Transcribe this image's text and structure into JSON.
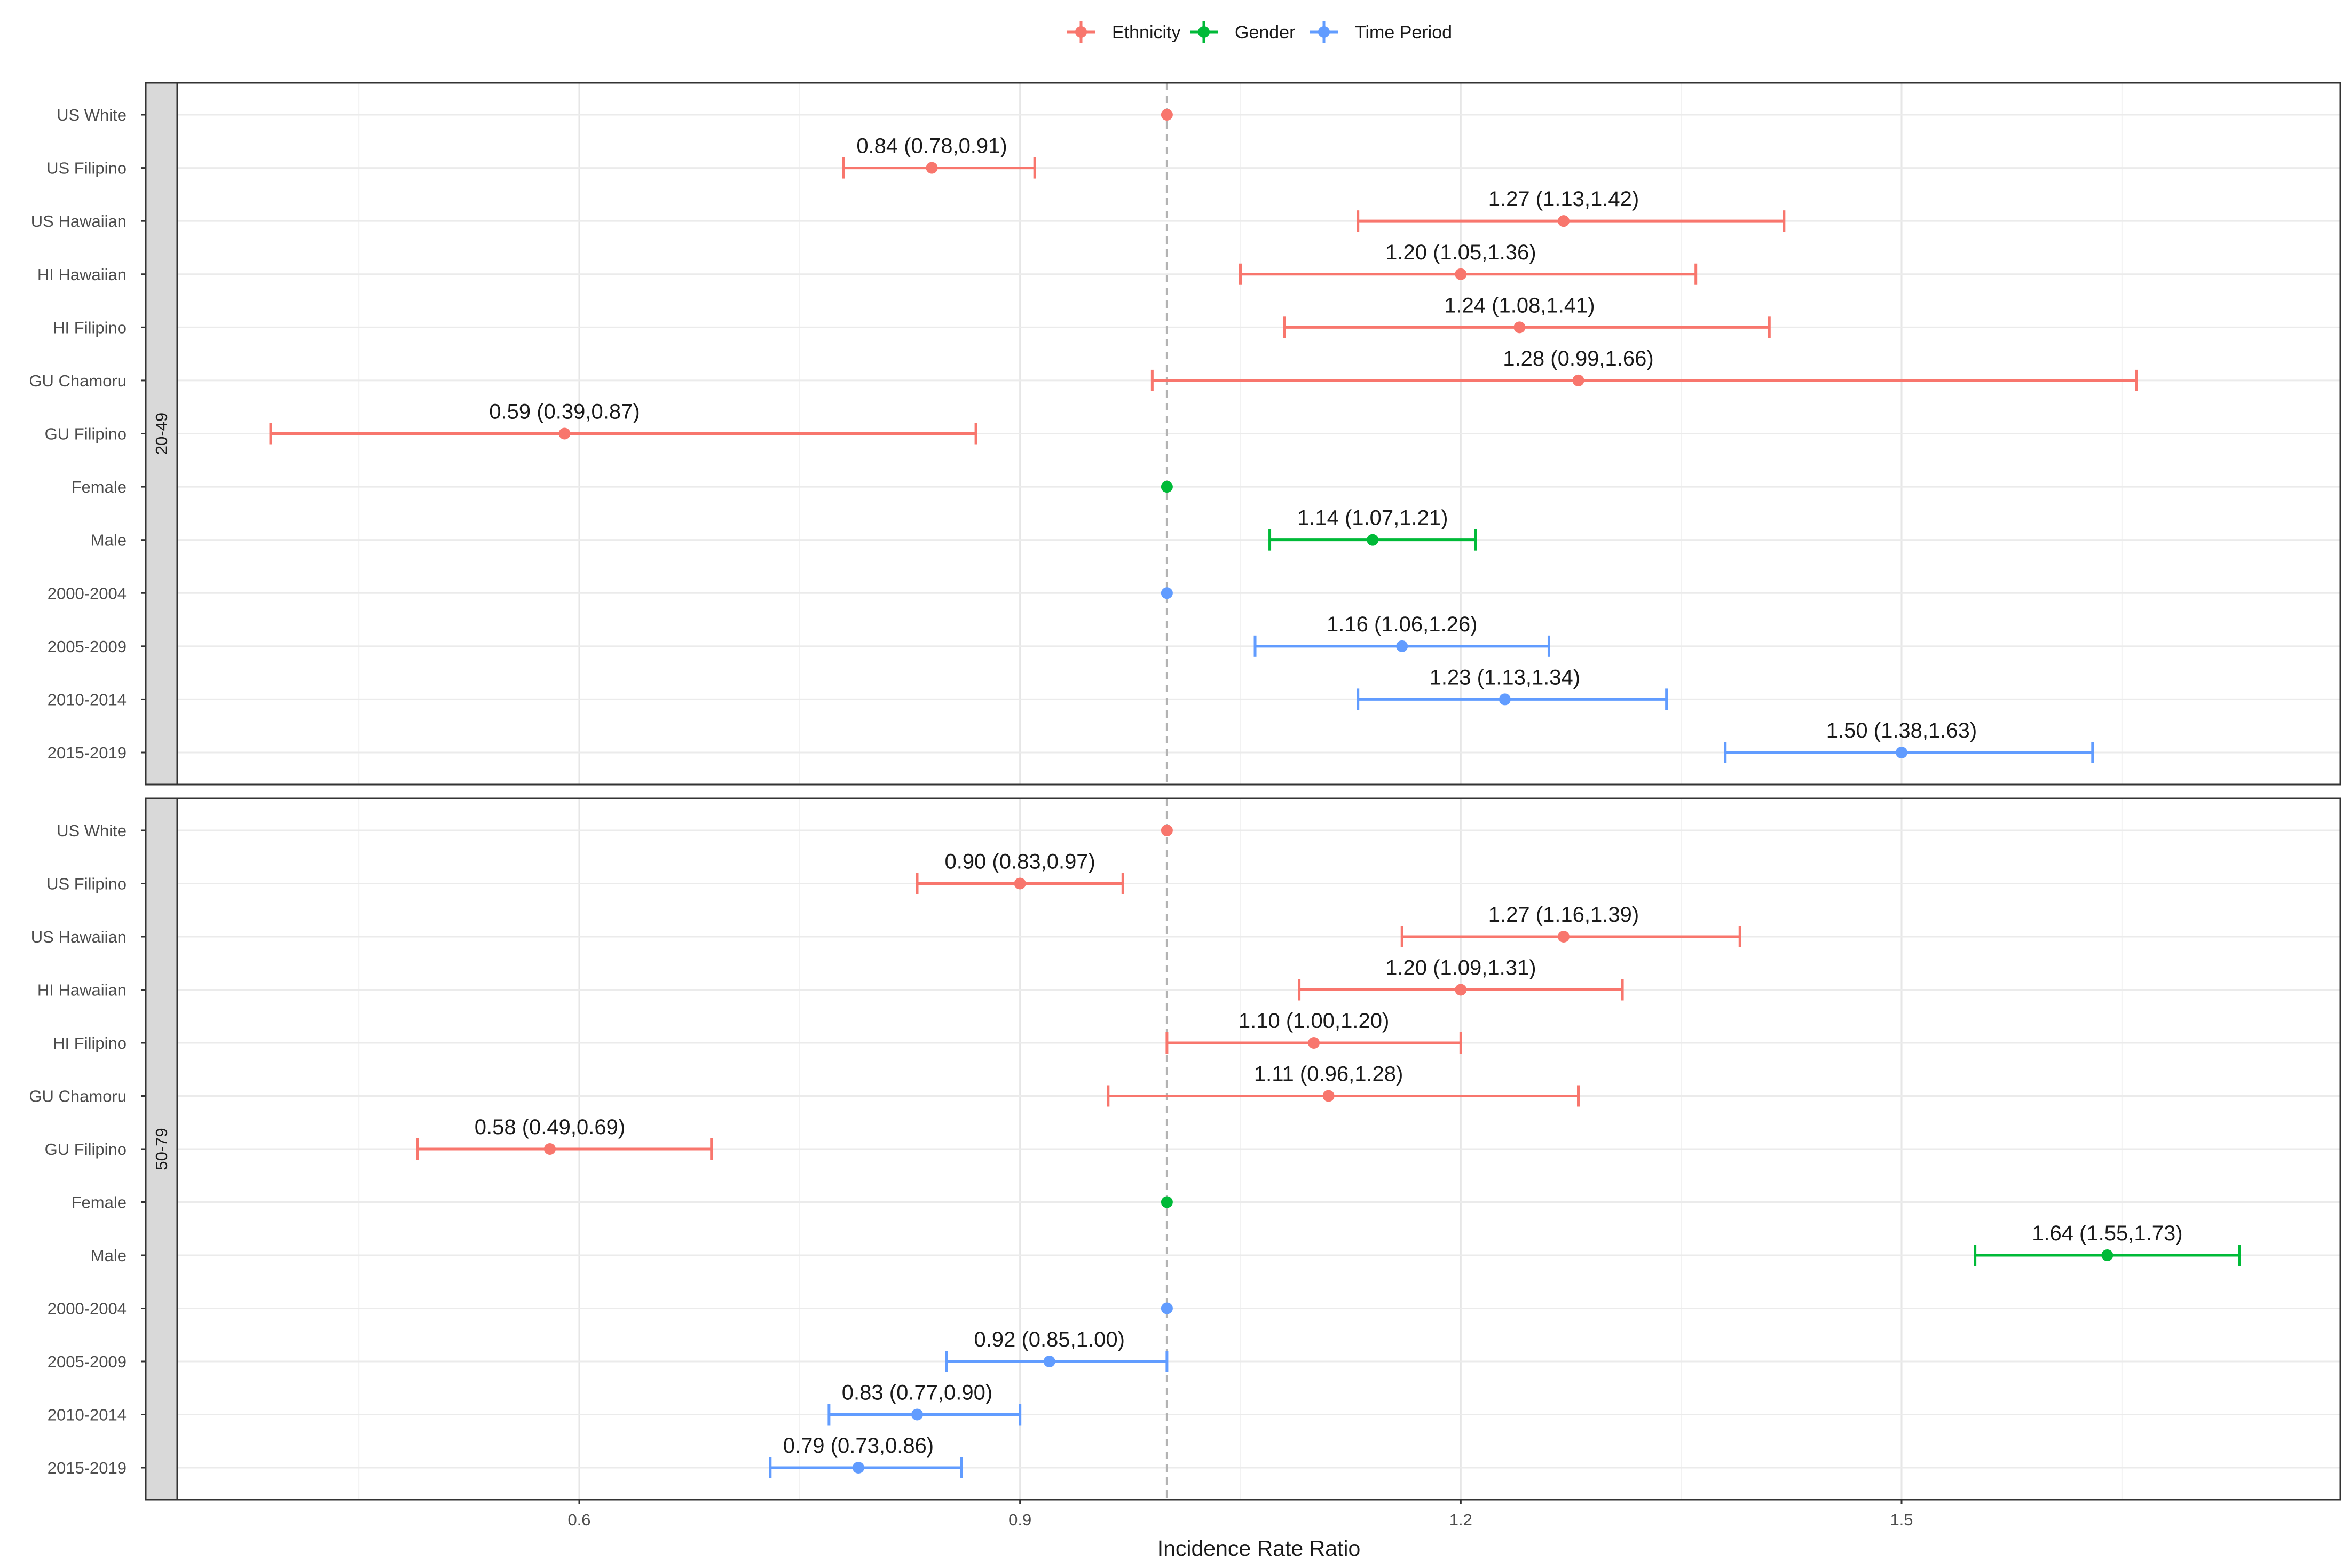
{
  "chart_data": {
    "type": "forest",
    "xlabel": "Incidence Rate Ratio",
    "xticks": [
      "0.6",
      "0.9",
      "1.2",
      "1.5"
    ],
    "xlim": [
      0.34,
      1.82
    ],
    "reference_line": 1.0,
    "legend": {
      "position": "top",
      "entries": [
        {
          "name": "Ethnicity",
          "color": "#F8766D"
        },
        {
          "name": "Gender",
          "color": "#00BA38"
        },
        {
          "name": "Time Period",
          "color": "#619CFF"
        }
      ]
    },
    "categories": [
      "US White",
      "US Filipino",
      "US Hawaiian",
      "HI Hawaiian",
      "HI Filipino",
      "GU Chamoru",
      "GU Filipino",
      "Female",
      "Male",
      "2000-2004",
      "2005-2009",
      "2010-2014",
      "2015-2019"
    ],
    "panels": [
      {
        "name": "20-49",
        "rows": [
          {
            "label": "US White",
            "group": "Ethnicity",
            "est": 1.0,
            "lo": null,
            "hi": null,
            "text": ""
          },
          {
            "label": "US Filipino",
            "group": "Ethnicity",
            "est": 0.84,
            "lo": 0.78,
            "hi": 0.91,
            "text": "0.84 (0.78,0.91)"
          },
          {
            "label": "US Hawaiian",
            "group": "Ethnicity",
            "est": 1.27,
            "lo": 1.13,
            "hi": 1.42,
            "text": "1.27 (1.13,1.42)"
          },
          {
            "label": "HI Hawaiian",
            "group": "Ethnicity",
            "est": 1.2,
            "lo": 1.05,
            "hi": 1.36,
            "text": "1.20 (1.05,1.36)"
          },
          {
            "label": "HI Filipino",
            "group": "Ethnicity",
            "est": 1.24,
            "lo": 1.08,
            "hi": 1.41,
            "text": "1.24 (1.08,1.41)"
          },
          {
            "label": "GU Chamoru",
            "group": "Ethnicity",
            "est": 1.28,
            "lo": 0.99,
            "hi": 1.66,
            "text": "1.28 (0.99,1.66)"
          },
          {
            "label": "GU Filipino",
            "group": "Ethnicity",
            "est": 0.59,
            "lo": 0.39,
            "hi": 0.87,
            "text": "0.59 (0.39,0.87)"
          },
          {
            "label": "Female",
            "group": "Gender",
            "est": 1.0,
            "lo": null,
            "hi": null,
            "text": ""
          },
          {
            "label": "Male",
            "group": "Gender",
            "est": 1.14,
            "lo": 1.07,
            "hi": 1.21,
            "text": "1.14 (1.07,1.21)"
          },
          {
            "label": "2000-2004",
            "group": "Time Period",
            "est": 1.0,
            "lo": null,
            "hi": null,
            "text": ""
          },
          {
            "label": "2005-2009",
            "group": "Time Period",
            "est": 1.16,
            "lo": 1.06,
            "hi": 1.26,
            "text": "1.16 (1.06,1.26)"
          },
          {
            "label": "2010-2014",
            "group": "Time Period",
            "est": 1.23,
            "lo": 1.13,
            "hi": 1.34,
            "text": "1.23 (1.13,1.34)"
          },
          {
            "label": "2015-2019",
            "group": "Time Period",
            "est": 1.5,
            "lo": 1.38,
            "hi": 1.63,
            "text": "1.50 (1.38,1.63)"
          }
        ]
      },
      {
        "name": "50-79",
        "rows": [
          {
            "label": "US White",
            "group": "Ethnicity",
            "est": 1.0,
            "lo": null,
            "hi": null,
            "text": ""
          },
          {
            "label": "US Filipino",
            "group": "Ethnicity",
            "est": 0.9,
            "lo": 0.83,
            "hi": 0.97,
            "text": "0.90 (0.83,0.97)"
          },
          {
            "label": "US Hawaiian",
            "group": "Ethnicity",
            "est": 1.27,
            "lo": 1.16,
            "hi": 1.39,
            "text": "1.27 (1.16,1.39)"
          },
          {
            "label": "HI Hawaiian",
            "group": "Ethnicity",
            "est": 1.2,
            "lo": 1.09,
            "hi": 1.31,
            "text": "1.20 (1.09,1.31)"
          },
          {
            "label": "HI Filipino",
            "group": "Ethnicity",
            "est": 1.1,
            "lo": 1.0,
            "hi": 1.2,
            "text": "1.10 (1.00,1.20)"
          },
          {
            "label": "GU Chamoru",
            "group": "Ethnicity",
            "est": 1.11,
            "lo": 0.96,
            "hi": 1.28,
            "text": "1.11 (0.96,1.28)"
          },
          {
            "label": "GU Filipino",
            "group": "Ethnicity",
            "est": 0.58,
            "lo": 0.49,
            "hi": 0.69,
            "text": "0.58 (0.49,0.69)"
          },
          {
            "label": "Female",
            "group": "Gender",
            "est": 1.0,
            "lo": null,
            "hi": null,
            "text": ""
          },
          {
            "label": "Male",
            "group": "Gender",
            "est": 1.64,
            "lo": 1.55,
            "hi": 1.73,
            "text": "1.64 (1.55,1.73)"
          },
          {
            "label": "2000-2004",
            "group": "Time Period",
            "est": 1.0,
            "lo": null,
            "hi": null,
            "text": ""
          },
          {
            "label": "2005-2009",
            "group": "Time Period",
            "est": 0.92,
            "lo": 0.85,
            "hi": 1.0,
            "text": "0.92 (0.85,1.00)"
          },
          {
            "label": "2010-2014",
            "group": "Time Period",
            "est": 0.83,
            "lo": 0.77,
            "hi": 0.9,
            "text": "0.83 (0.77,0.90)"
          },
          {
            "label": "2015-2019",
            "group": "Time Period",
            "est": 0.79,
            "lo": 0.73,
            "hi": 0.86,
            "text": "0.79 (0.73,0.86)"
          }
        ]
      }
    ]
  }
}
